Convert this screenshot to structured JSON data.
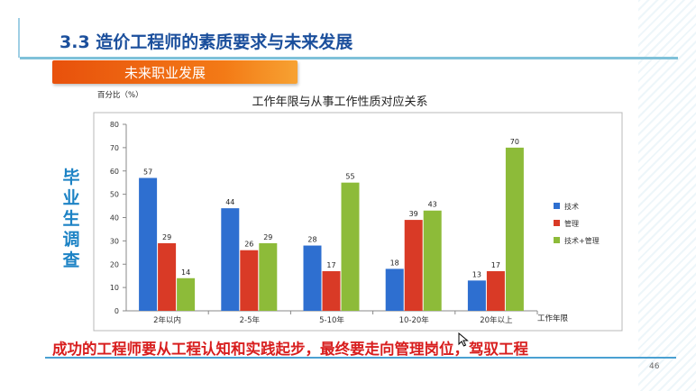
{
  "header": {
    "title": "3.3  造价工程师的素质要求与未来发展"
  },
  "section": {
    "subtitle": "未来职业发展"
  },
  "side_label": [
    "毕",
    "业",
    "生",
    "调",
    "查"
  ],
  "footer": {
    "statement": "成功的工程师要从工程认知和实践起步，最终要走向管理岗位，驾驭工程",
    "page_number": "46"
  },
  "colors": {
    "tech": "#2e6fd0",
    "mgmt": "#d93a26",
    "both": "#8dbb39",
    "title": "#1b4f9c",
    "accent_orange": "#f0641a"
  },
  "chart_data": {
    "type": "bar",
    "title": "工作年限与从事工作性质对应关系",
    "ylabel": "百分比（%）",
    "xlabel": "工作年限",
    "ylim": [
      0,
      80
    ],
    "yticks": [
      0,
      10,
      20,
      30,
      40,
      50,
      60,
      70,
      80
    ],
    "categories": [
      "2年以内",
      "2-5年",
      "5-10年",
      "10-20年",
      "20年以上"
    ],
    "series": [
      {
        "name": "技术",
        "values": [
          57,
          44,
          28,
          18,
          13
        ]
      },
      {
        "name": "管理",
        "values": [
          29,
          26,
          17,
          39,
          17
        ]
      },
      {
        "name": "技术+管理",
        "values": [
          14,
          29,
          55,
          43,
          70
        ]
      }
    ],
    "legend": "right",
    "grid": false
  }
}
